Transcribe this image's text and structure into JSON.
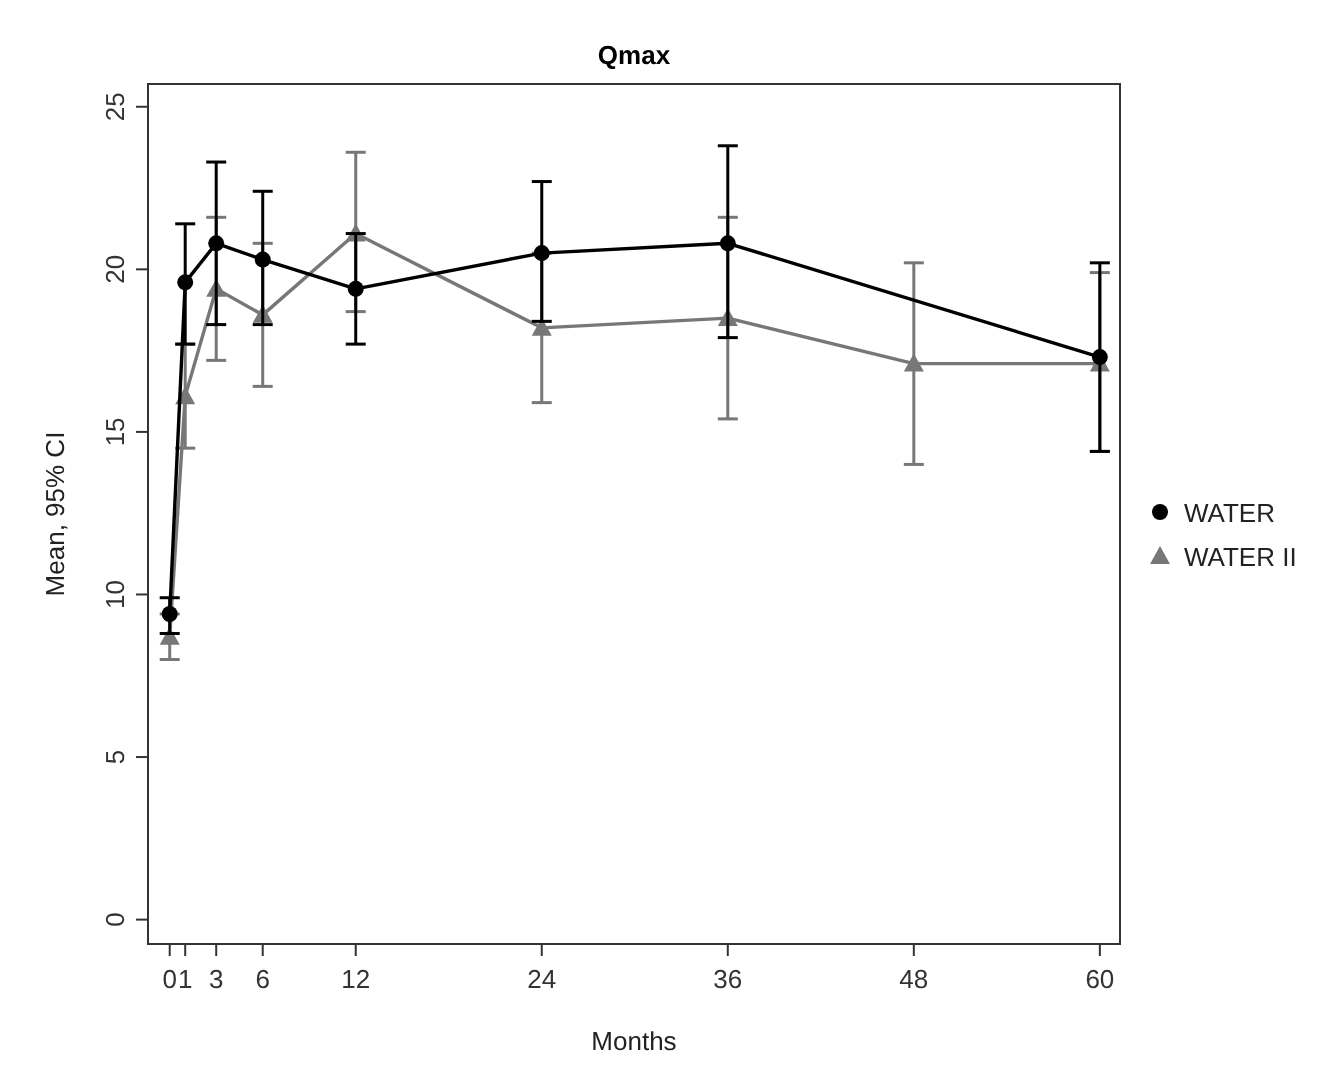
{
  "chart_data": {
    "type": "line",
    "title": "Qmax",
    "xlabel": "Months",
    "ylabel": "Mean, 95% CI",
    "x": [
      0,
      1,
      3,
      6,
      12,
      24,
      36,
      48,
      60
    ],
    "series": [
      {
        "name": "WATER",
        "color": "#000000",
        "marker": "circle",
        "values": [
          9.4,
          19.6,
          20.8,
          20.3,
          19.4,
          20.5,
          20.8,
          null,
          17.3
        ],
        "errors": [
          [
            8.8,
            9.9
          ],
          [
            17.7,
            21.4
          ],
          [
            18.3,
            23.3
          ],
          [
            18.3,
            22.4
          ],
          [
            17.7,
            21.1
          ],
          [
            18.4,
            22.7
          ],
          [
            17.9,
            23.8
          ],
          null,
          [
            14.4,
            20.2
          ]
        ]
      },
      {
        "name": "WATER II",
        "color": "#777777",
        "marker": "triangle",
        "values": [
          8.7,
          16.1,
          19.4,
          18.6,
          21.1,
          18.2,
          18.5,
          17.1,
          17.1
        ],
        "errors": [
          [
            8.0,
            9.4
          ],
          [
            14.5,
            17.7
          ],
          [
            17.2,
            21.6
          ],
          [
            16.4,
            20.8
          ],
          [
            18.7,
            23.6
          ],
          [
            15.9,
            20.5
          ],
          [
            15.4,
            21.6
          ],
          [
            14.0,
            20.2
          ],
          [
            14.4,
            19.9
          ]
        ]
      }
    ],
    "xlim": [
      -1.4,
      61.3
    ],
    "ylim": [
      -0.75,
      25.7
    ],
    "xticks": [
      0,
      1,
      3,
      6,
      12,
      24,
      36,
      48,
      60
    ],
    "yticks": [
      0,
      5,
      10,
      15,
      20,
      25
    ],
    "grid": false,
    "legend": "right"
  }
}
